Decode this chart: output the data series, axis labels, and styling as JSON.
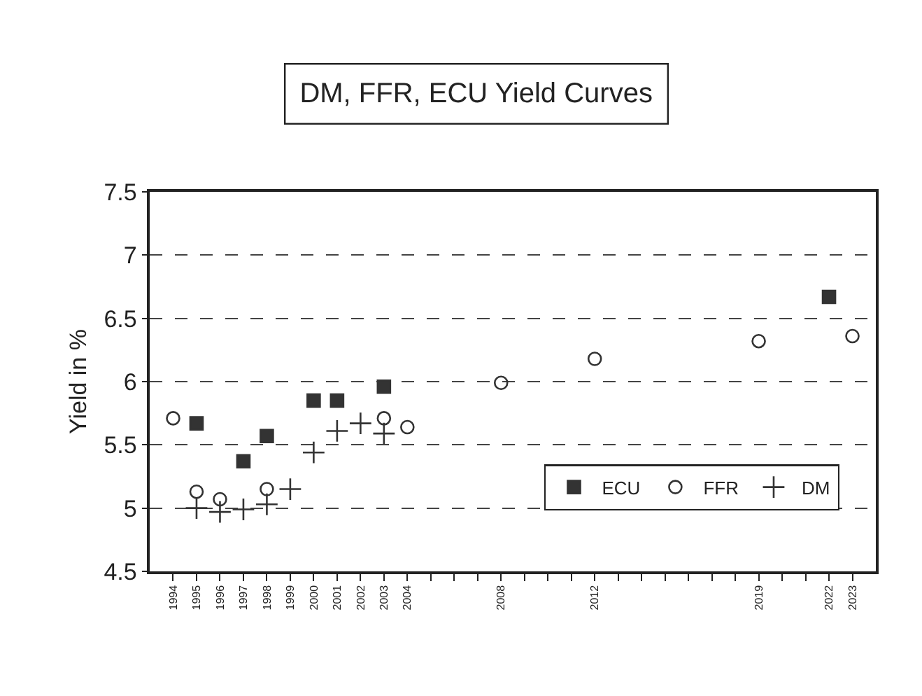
{
  "chart_data": {
    "type": "scatter",
    "title": "DM, FFR, ECU Yield Curves",
    "ylabel": "Yield in %",
    "xlim": [
      1993,
      2024
    ],
    "xticks": [
      1994,
      1995,
      1996,
      1997,
      1998,
      1999,
      2000,
      2001,
      2002,
      2003,
      2004,
      {
        "value": 2005,
        "label": null
      },
      {
        "value": 2006,
        "label": null
      },
      {
        "value": 2007,
        "label": null
      },
      2008,
      {
        "value": 2009,
        "label": null
      },
      {
        "value": 2010,
        "label": null
      },
      {
        "value": 2011,
        "label": null
      },
      2012,
      {
        "value": 2013,
        "label": null
      },
      {
        "value": 2014,
        "label": null
      },
      {
        "value": 2015,
        "label": null
      },
      {
        "value": 2016,
        "label": null
      },
      {
        "value": 2017,
        "label": null
      },
      {
        "value": 2018,
        "label": null
      },
      2019,
      {
        "value": 2020,
        "label": null
      },
      {
        "value": 2021,
        "label": null
      },
      2022,
      2023
    ],
    "ylim": [
      4.5,
      7.5
    ],
    "yticks": [
      4.5,
      5,
      5.5,
      6,
      6.5,
      7,
      7.5
    ],
    "grid": "y",
    "legend": "bottom right",
    "series": [
      {
        "name": "ECU",
        "color": "#333333",
        "marker": "square",
        "x": [
          1995,
          1997,
          1998,
          2000,
          2001,
          2003,
          2022
        ],
        "values": [
          5.67,
          5.37,
          5.57,
          5.85,
          5.85,
          5.96,
          6.67
        ]
      },
      {
        "name": "FFR",
        "color": "#333333",
        "marker": "circle",
        "x": [
          1994,
          1995,
          1996,
          1998,
          2003,
          2004,
          2008,
          2012,
          2019,
          2023
        ],
        "values": [
          5.71,
          5.13,
          5.07,
          5.15,
          5.71,
          5.64,
          5.99,
          6.18,
          6.32,
          6.36
        ]
      },
      {
        "name": "DM",
        "color": "#333333",
        "marker": "cross",
        "x": [
          1995,
          1996,
          1997,
          1998,
          1999,
          2000,
          2001,
          2002,
          2003
        ],
        "values": [
          5.0,
          4.97,
          4.99,
          5.03,
          5.15,
          5.44,
          5.61,
          5.67,
          5.59
        ]
      }
    ]
  }
}
